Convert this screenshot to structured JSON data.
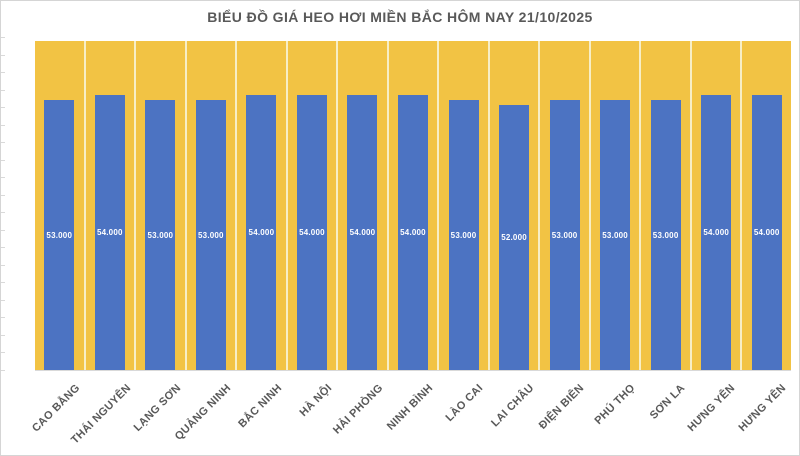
{
  "chart_data": {
    "type": "bar",
    "title": "BIỂU ĐỒ GIÁ HEO HƠI MIỀN BẮC HÔM NAY 21/10/2025",
    "categories": [
      "CAO BẰNG",
      "THÁI NGUYÊN",
      "LẠNG SƠN",
      "QUẢNG NINH",
      "BẮC NINH",
      "HÀ NỘI",
      "HẢI PHÒNG",
      "NINH BÌNH",
      "LÀO CAI",
      "LAI CHÂU",
      "ĐIỆN BIÊN",
      "PHÚ THỌ",
      "SƠN LA",
      "HƯNG YÊN",
      "HƯNG YÊN"
    ],
    "values": [
      53000,
      54000,
      53000,
      53000,
      54000,
      54000,
      54000,
      54000,
      53000,
      52000,
      53000,
      53000,
      53000,
      54000,
      54000
    ],
    "value_labels": [
      "53.000",
      "54.000",
      "53.000",
      "53.000",
      "54.000",
      "54.000",
      "54.000",
      "54.000",
      "53.000",
      "52.000",
      "53.000",
      "53.000",
      "53.000",
      "54.000",
      "54.000"
    ],
    "xlabel": "",
    "ylabel": "",
    "ylim": [
      0,
      64500
    ],
    "grid": false,
    "legend": null,
    "value_label_position": "center-of-bar",
    "category_label_rotation_deg": 45,
    "colors": {
      "bar": "#4c73c2",
      "background_band": "#f2c344",
      "band_separator": "#f7eec6",
      "value_label_text": "#ffffff",
      "category_label_text": "#595959",
      "title_text": "#595959",
      "axis_tick": "#d9d9d9",
      "chart_border": "#d5d5d5"
    }
  }
}
